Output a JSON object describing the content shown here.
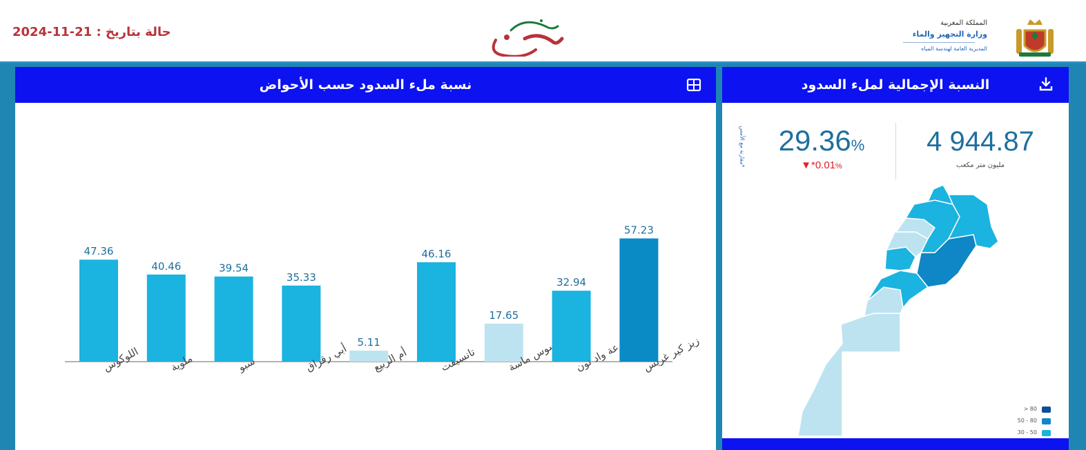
{
  "header": {
    "date_label": "حالة بتاريخ : 21-11-2024",
    "brand_name": "مغرب السدود",
    "ministry": {
      "line1": "المملكة المغربية",
      "line2": "وزارة التجهيز والماء",
      "line3": "المديرية العامة لهندسة المياه"
    }
  },
  "left_panel": {
    "title": "نسبة ملء السدود حسب الأحواض",
    "icon": "table-icon"
  },
  "right_panel": {
    "title": "النسبة الإجمالية لملء السدود",
    "icon": "download-icon",
    "volume_value": "4 944.87",
    "volume_unit": "مليون متر مكعب",
    "fill_rate": "29.36",
    "fill_rate_unit": "%",
    "change_value": "0.01",
    "change_prefix": "▼*",
    "change_unit": "%",
    "compare_note": "*مقارنة مع الأمس"
  },
  "map": {
    "legend": [
      {
        "label": "> 80",
        "color": "#0a4f96"
      },
      {
        "label": "50 - 80",
        "color": "#0f86c5"
      },
      {
        "label": "30 - 50",
        "color": "#1bb3e0"
      }
    ],
    "colors": {
      "low": "#bde3f0",
      "mid": "#1bb3e0",
      "high": "#0f86c5",
      "border": "#ffffff"
    }
  },
  "chart_data": {
    "type": "bar",
    "categories": [
      "اللوكوس",
      "ملوية",
      "سبو",
      "أبي رقراق",
      "أم الربيع",
      "تانسيفت",
      "سوس ماسة",
      "درعة واد نون",
      "زيز كير غريس"
    ],
    "values": [
      47.36,
      40.46,
      39.54,
      35.33,
      5.11,
      46.16,
      17.65,
      32.94,
      57.23
    ],
    "value_labels": [
      "47.36",
      "40.46",
      "39.54",
      "35.33",
      "5.11",
      "46.16",
      "17.65",
      "32.94",
      "57.23"
    ],
    "colors": [
      "#1bb3e0",
      "#1bb3e0",
      "#1bb3e0",
      "#1bb3e0",
      "#bde3f0",
      "#1bb3e0",
      "#bde3f0",
      "#1bb3e0",
      "#0b8bc6"
    ],
    "ylim": [
      0,
      100
    ],
    "grid": false,
    "title": "",
    "xlabel": "",
    "ylabel": ""
  }
}
